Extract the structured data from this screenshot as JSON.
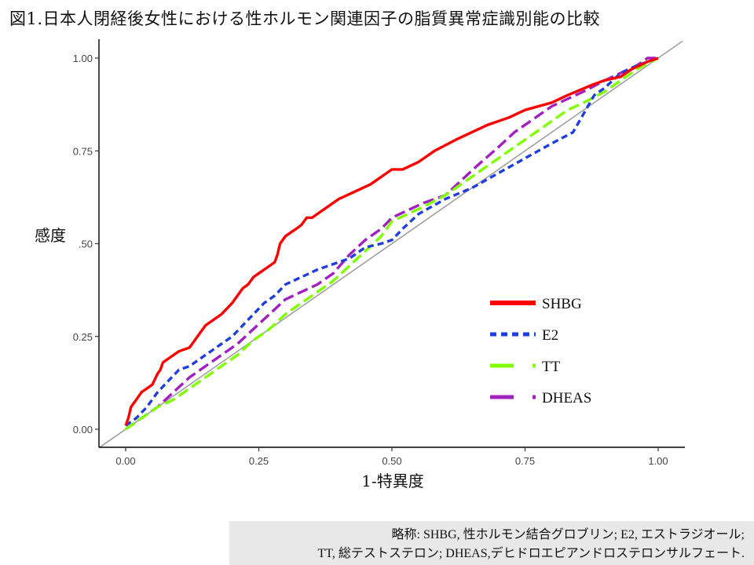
{
  "title": "図1.日本人閉経後女性における性ホルモン関連因子の脂質異常症識別能の比較",
  "footnote": {
    "line1": "略称: SHBG, 性ホルモン結合グロブリン; E2, エストラジオール;",
    "line2": "TT, 総テストステロン; DHEAS,デヒドロエピアンドロステロンサルフェート."
  },
  "chart_data": {
    "type": "line",
    "xlabel": "1-特異度",
    "ylabel": "感度",
    "xlim": [
      0,
      1
    ],
    "ylim": [
      0,
      1
    ],
    "x_ticks": [
      "0.00",
      "0.25",
      "0.50",
      "0.75",
      "1.00"
    ],
    "y_ticks": [
      "0.00",
      "0.25",
      ".50",
      "0.75",
      "1.00"
    ],
    "grid": false,
    "legend_position": "bottom-right",
    "reference_line": {
      "x": [
        0,
        1
      ],
      "y": [
        0,
        1
      ],
      "color": "#a0a0a0"
    },
    "series": [
      {
        "name": "SHBG",
        "color": "#ff0000",
        "dash": "solid",
        "x": [
          0,
          0.005,
          0.01,
          0.02,
          0.03,
          0.04,
          0.05,
          0.06,
          0.065,
          0.07,
          0.08,
          0.09,
          0.1,
          0.12,
          0.13,
          0.14,
          0.15,
          0.17,
          0.18,
          0.2,
          0.21,
          0.22,
          0.23,
          0.24,
          0.25,
          0.26,
          0.27,
          0.28,
          0.285,
          0.29,
          0.3,
          0.31,
          0.32,
          0.33,
          0.34,
          0.35,
          0.38,
          0.4,
          0.43,
          0.46,
          0.49,
          0.5,
          0.52,
          0.55,
          0.58,
          0.62,
          0.65,
          0.68,
          0.72,
          0.75,
          0.8,
          0.83,
          0.88,
          0.9,
          0.93,
          0.95,
          0.98,
          1.0
        ],
        "y": [
          0.01,
          0.03,
          0.06,
          0.08,
          0.1,
          0.11,
          0.12,
          0.15,
          0.16,
          0.18,
          0.19,
          0.2,
          0.21,
          0.22,
          0.24,
          0.26,
          0.28,
          0.3,
          0.31,
          0.34,
          0.36,
          0.38,
          0.39,
          0.41,
          0.42,
          0.43,
          0.44,
          0.45,
          0.47,
          0.5,
          0.52,
          0.53,
          0.54,
          0.55,
          0.57,
          0.57,
          0.6,
          0.62,
          0.64,
          0.66,
          0.69,
          0.7,
          0.7,
          0.72,
          0.75,
          0.78,
          0.8,
          0.82,
          0.84,
          0.86,
          0.88,
          0.9,
          0.93,
          0.94,
          0.95,
          0.97,
          0.99,
          1.0
        ]
      },
      {
        "name": "E2",
        "color": "#1f3fdd",
        "dash": "dashed",
        "x": [
          0,
          0.02,
          0.04,
          0.06,
          0.08,
          0.1,
          0.12,
          0.14,
          0.16,
          0.18,
          0.2,
          0.22,
          0.24,
          0.26,
          0.28,
          0.3,
          0.33,
          0.36,
          0.38,
          0.4,
          0.42,
          0.45,
          0.48,
          0.5,
          0.52,
          0.55,
          0.6,
          0.65,
          0.7,
          0.75,
          0.8,
          0.84,
          0.86,
          0.88,
          0.9,
          0.93,
          0.96,
          1.0
        ],
        "y": [
          0.01,
          0.03,
          0.06,
          0.1,
          0.13,
          0.16,
          0.17,
          0.19,
          0.21,
          0.23,
          0.25,
          0.28,
          0.31,
          0.34,
          0.36,
          0.39,
          0.41,
          0.43,
          0.44,
          0.45,
          0.46,
          0.49,
          0.5,
          0.51,
          0.54,
          0.58,
          0.62,
          0.65,
          0.69,
          0.73,
          0.77,
          0.8,
          0.85,
          0.9,
          0.92,
          0.96,
          0.98,
          1.0
        ]
      },
      {
        "name": "TT",
        "color": "#80ff00",
        "dash": "longdash",
        "x": [
          0,
          0.03,
          0.06,
          0.09,
          0.12,
          0.15,
          0.18,
          0.21,
          0.24,
          0.27,
          0.3,
          0.33,
          0.36,
          0.39,
          0.42,
          0.45,
          0.48,
          0.5,
          0.53,
          0.56,
          0.6,
          0.63,
          0.66,
          0.7,
          0.73,
          0.76,
          0.8,
          0.83,
          0.86,
          0.9,
          0.93,
          0.96,
          1.0
        ],
        "y": [
          0.0,
          0.03,
          0.06,
          0.08,
          0.11,
          0.14,
          0.17,
          0.2,
          0.24,
          0.27,
          0.31,
          0.34,
          0.37,
          0.4,
          0.44,
          0.48,
          0.52,
          0.56,
          0.58,
          0.6,
          0.63,
          0.66,
          0.69,
          0.73,
          0.76,
          0.79,
          0.83,
          0.86,
          0.88,
          0.91,
          0.94,
          0.97,
          1.0
        ]
      },
      {
        "name": "DHEAS",
        "color": "#a020c0",
        "dash": "longdash",
        "x": [
          0,
          0.03,
          0.06,
          0.09,
          0.12,
          0.15,
          0.18,
          0.21,
          0.24,
          0.27,
          0.3,
          0.33,
          0.36,
          0.39,
          0.42,
          0.45,
          0.48,
          0.5,
          0.53,
          0.56,
          0.6,
          0.63,
          0.66,
          0.7,
          0.73,
          0.76,
          0.8,
          0.83,
          0.86,
          0.9,
          0.93,
          0.96,
          0.98,
          1.0
        ],
        "y": [
          0.0,
          0.03,
          0.06,
          0.1,
          0.14,
          0.17,
          0.2,
          0.23,
          0.27,
          0.31,
          0.35,
          0.37,
          0.39,
          0.42,
          0.47,
          0.51,
          0.54,
          0.57,
          0.59,
          0.61,
          0.63,
          0.67,
          0.71,
          0.76,
          0.8,
          0.83,
          0.87,
          0.89,
          0.91,
          0.94,
          0.96,
          0.98,
          1.0,
          1.0
        ]
      }
    ]
  }
}
